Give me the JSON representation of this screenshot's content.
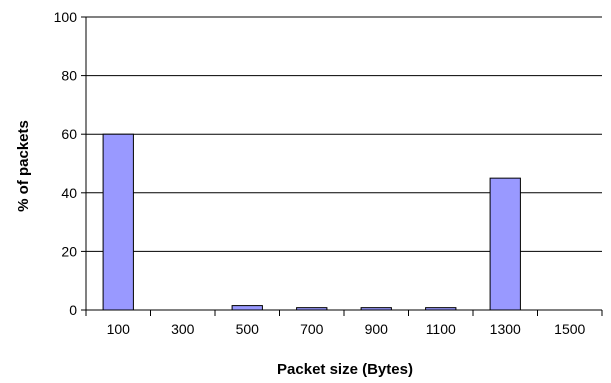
{
  "chart_data": {
    "type": "bar",
    "title": "",
    "xlabel": "Packet size (Bytes)",
    "ylabel": "% of packets",
    "categories": [
      "100",
      "300",
      "500",
      "700",
      "900",
      "1100",
      "1300",
      "1500"
    ],
    "values": [
      60,
      0,
      1.5,
      0.8,
      0.8,
      0.8,
      45,
      0
    ],
    "ylim": [
      0,
      100
    ],
    "yticks": [
      0,
      20,
      40,
      60,
      80,
      100
    ],
    "grid": true,
    "legend": "none",
    "bar_color": "#9999ff",
    "bar_edge_color": "#000000"
  }
}
